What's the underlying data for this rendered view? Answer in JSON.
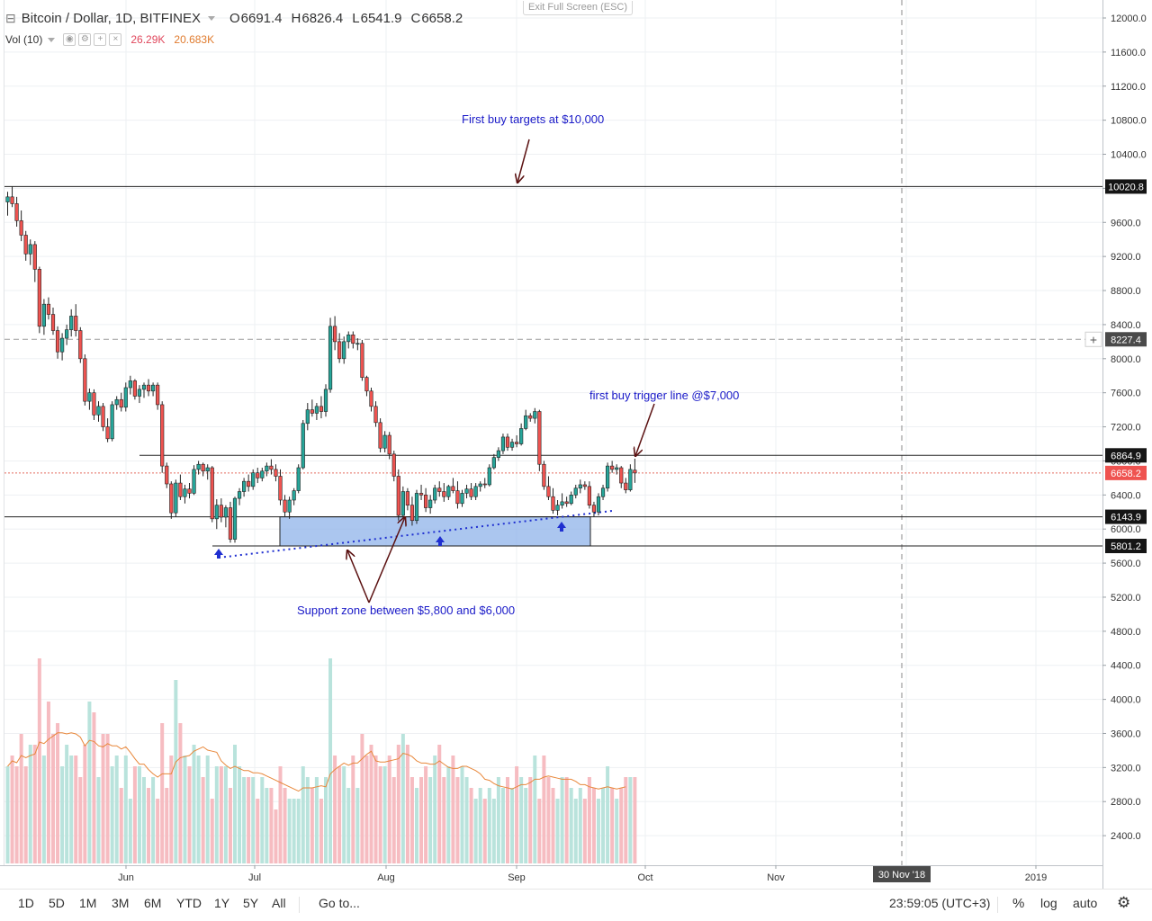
{
  "header": {
    "symbol_title": "Bitcoin / Dollar, 1D, BITFINEX",
    "ohlc": [
      {
        "label": "O",
        "value": "6691.4"
      },
      {
        "label": "H",
        "value": "6826.4"
      },
      {
        "label": "L",
        "value": "6541.9"
      },
      {
        "label": "C",
        "value": "6658.2"
      }
    ],
    "volume_label": "Vol (10)",
    "volume_value": "26.29K",
    "volume_ma_value": "20.683K",
    "exit_fullscreen": "Exit Full Screen (ESC)"
  },
  "colors": {
    "up": "#26a69a",
    "down": "#ef5350",
    "volume_up": "#b9e3dc",
    "volume_down": "#f6bcc1",
    "volume_ma": "#e8873a",
    "annotation_text": "#1a1ac8",
    "arrow": "#5b1111",
    "support_fill": "#8fb3ea"
  },
  "chart_data": {
    "type": "candlestick",
    "timeframe": "1D",
    "exchange": "BITFINEX",
    "x_tick_labels": [
      "Jun",
      "Jul",
      "Aug",
      "Sep",
      "Oct",
      "Nov",
      "30 Nov '18",
      "2019"
    ],
    "y_tick_labels": [
      "12000.0",
      "11600.0",
      "11200.0",
      "10800.0",
      "10400.0",
      "10000.0",
      "9600.0",
      "9200.0",
      "8800.0",
      "8400.0",
      "8000.0",
      "7600.0",
      "7200.0",
      "6800.0",
      "6400.0",
      "6000.0",
      "5600.0",
      "5200.0",
      "4800.0",
      "4400.0",
      "4000.0",
      "3600.0",
      "3200.0",
      "2800.0",
      "2400.0"
    ],
    "price_levels": [
      {
        "label": "10020.8",
        "value": 10020.8,
        "style": "solid"
      },
      {
        "label": "8227.4",
        "value": 8227.4,
        "style": "crosshair"
      },
      {
        "label": "6864.9",
        "value": 6864.9,
        "style": "solid"
      },
      {
        "label": "6658.2",
        "value": 6658.2,
        "style": "last-price"
      },
      {
        "label": "6143.9",
        "value": 6143.9,
        "style": "solid"
      },
      {
        "label": "5801.2",
        "value": 5801.2,
        "style": "solid"
      }
    ],
    "support_zone": {
      "low": 5801.2,
      "high": 6143.9
    },
    "annotations": [
      "First buy targets at $10,000",
      "first buy trigger line @$7,000",
      "Support zone between $5,800 and $6,000"
    ],
    "candles": [
      [
        9840,
        9960,
        9680,
        9900
      ],
      [
        9900,
        10020,
        9780,
        9820
      ],
      [
        9820,
        9900,
        9550,
        9620
      ],
      [
        9620,
        9740,
        9380,
        9450
      ],
      [
        9450,
        9500,
        9150,
        9230
      ],
      [
        9230,
        9400,
        9100,
        9340
      ],
      [
        9340,
        9380,
        8900,
        9050
      ],
      [
        9050,
        9080,
        8300,
        8380
      ],
      [
        8380,
        8700,
        8280,
        8640
      ],
      [
        8640,
        8720,
        8460,
        8520
      ],
      [
        8520,
        8600,
        8280,
        8330
      ],
      [
        8330,
        8380,
        8000,
        8080
      ],
      [
        8080,
        8300,
        7980,
        8240
      ],
      [
        8240,
        8400,
        8160,
        8340
      ],
      [
        8340,
        8580,
        8260,
        8500
      ],
      [
        8500,
        8640,
        8260,
        8330
      ],
      [
        8330,
        8370,
        7950,
        8000
      ],
      [
        8000,
        8050,
        7450,
        7500
      ],
      [
        7500,
        7650,
        7400,
        7600
      ],
      [
        7600,
        7640,
        7280,
        7340
      ],
      [
        7340,
        7500,
        7260,
        7440
      ],
      [
        7440,
        7480,
        7150,
        7200
      ],
      [
        7200,
        7300,
        7020,
        7060
      ],
      [
        7060,
        7500,
        7030,
        7460
      ],
      [
        7460,
        7560,
        7400,
        7520
      ],
      [
        7520,
        7600,
        7380,
        7430
      ],
      [
        7430,
        7720,
        7380,
        7660
      ],
      [
        7660,
        7800,
        7580,
        7740
      ],
      [
        7740,
        7760,
        7520,
        7560
      ],
      [
        7560,
        7690,
        7480,
        7640
      ],
      [
        7640,
        7720,
        7540,
        7690
      ],
      [
        7690,
        7760,
        7560,
        7620
      ],
      [
        7620,
        7720,
        7560,
        7690
      ],
      [
        7690,
        7720,
        7400,
        7460
      ],
      [
        7460,
        7500,
        6660,
        6740
      ],
      [
        6740,
        6780,
        6480,
        6530
      ],
      [
        6530,
        6560,
        6120,
        6190
      ],
      [
        6190,
        6580,
        6140,
        6540
      ],
      [
        6540,
        6640,
        6340,
        6380
      ],
      [
        6380,
        6520,
        6300,
        6470
      ],
      [
        6470,
        6540,
        6360,
        6420
      ],
      [
        6420,
        6750,
        6400,
        6700
      ],
      [
        6700,
        6800,
        6640,
        6760
      ],
      [
        6760,
        6780,
        6620,
        6680
      ],
      [
        6680,
        6760,
        6580,
        6720
      ],
      [
        6720,
        6740,
        6080,
        6120
      ],
      [
        6120,
        6350,
        6000,
        6280
      ],
      [
        6280,
        6360,
        6080,
        6140
      ],
      [
        6140,
        6280,
        6020,
        6250
      ],
      [
        6250,
        6320,
        5840,
        5880
      ],
      [
        5880,
        6380,
        5840,
        6360
      ],
      [
        6360,
        6480,
        6280,
        6440
      ],
      [
        6440,
        6600,
        6380,
        6560
      ],
      [
        6560,
        6640,
        6440,
        6500
      ],
      [
        6500,
        6700,
        6460,
        6660
      ],
      [
        6660,
        6720,
        6540,
        6600
      ],
      [
        6600,
        6720,
        6560,
        6680
      ],
      [
        6680,
        6780,
        6620,
        6740
      ],
      [
        6740,
        6820,
        6640,
        6700
      ],
      [
        6700,
        6760,
        6560,
        6620
      ],
      [
        6620,
        6700,
        6280,
        6340
      ],
      [
        6340,
        6400,
        6150,
        6200
      ],
      [
        6200,
        6380,
        6120,
        6340
      ],
      [
        6340,
        6480,
        6280,
        6450
      ],
      [
        6450,
        6760,
        6420,
        6720
      ],
      [
        6720,
        7280,
        6700,
        7240
      ],
      [
        7240,
        7480,
        7160,
        7400
      ],
      [
        7400,
        7520,
        7320,
        7360
      ],
      [
        7360,
        7480,
        7280,
        7440
      ],
      [
        7440,
        7560,
        7300,
        7380
      ],
      [
        7380,
        7700,
        7320,
        7640
      ],
      [
        7640,
        8480,
        7600,
        8380
      ],
      [
        8380,
        8500,
        8100,
        8200
      ],
      [
        8200,
        8300,
        7950,
        8000
      ],
      [
        8000,
        8260,
        7940,
        8200
      ],
      [
        8200,
        8320,
        8120,
        8280
      ],
      [
        8280,
        8320,
        8120,
        8180
      ],
      [
        8180,
        8240,
        8100,
        8180
      ],
      [
        8180,
        8220,
        7740,
        7780
      ],
      [
        7780,
        7800,
        7560,
        7620
      ],
      [
        7620,
        7660,
        7380,
        7440
      ],
      [
        7440,
        7500,
        7200,
        7250
      ],
      [
        7250,
        7300,
        6900,
        6950
      ],
      [
        6950,
        7150,
        6900,
        7100
      ],
      [
        7100,
        7140,
        6820,
        6880
      ],
      [
        6880,
        6920,
        6560,
        6620
      ],
      [
        6620,
        6700,
        6100,
        6160
      ],
      [
        6160,
        6500,
        6120,
        6440
      ],
      [
        6440,
        6480,
        6220,
        6280
      ],
      [
        6280,
        6380,
        6040,
        6100
      ],
      [
        6100,
        6460,
        6060,
        6420
      ],
      [
        6420,
        6520,
        6340,
        6400
      ],
      [
        6400,
        6480,
        6200,
        6250
      ],
      [
        6250,
        6400,
        6180,
        6340
      ],
      [
        6340,
        6520,
        6300,
        6480
      ],
      [
        6480,
        6560,
        6380,
        6440
      ],
      [
        6440,
        6540,
        6320,
        6380
      ],
      [
        6380,
        6520,
        6340,
        6500
      ],
      [
        6500,
        6600,
        6420,
        6450
      ],
      [
        6450,
        6560,
        6240,
        6300
      ],
      [
        6300,
        6460,
        6260,
        6420
      ],
      [
        6420,
        6520,
        6360,
        6470
      ],
      [
        6470,
        6540,
        6340,
        6380
      ],
      [
        6380,
        6540,
        6340,
        6500
      ],
      [
        6500,
        6560,
        6440,
        6530
      ],
      [
        6530,
        6600,
        6480,
        6520
      ],
      [
        6520,
        6760,
        6500,
        6720
      ],
      [
        6720,
        6880,
        6700,
        6840
      ],
      [
        6840,
        6960,
        6800,
        6920
      ],
      [
        6920,
        7120,
        6880,
        7080
      ],
      [
        7080,
        7120,
        6920,
        6960
      ],
      [
        6960,
        7060,
        6920,
        7020
      ],
      [
        7020,
        7100,
        6960,
        7000
      ],
      [
        7000,
        7240,
        6980,
        7180
      ],
      [
        7180,
        7400,
        7160,
        7330
      ],
      [
        7330,
        7360,
        7260,
        7300
      ],
      [
        7300,
        7420,
        7240,
        7380
      ],
      [
        7380,
        7400,
        6680,
        6760
      ],
      [
        6760,
        6800,
        6460,
        6500
      ],
      [
        6500,
        6620,
        6340,
        6380
      ],
      [
        6380,
        6480,
        6180,
        6220
      ],
      [
        6220,
        6340,
        6160,
        6280
      ],
      [
        6280,
        6420,
        6240,
        6320
      ],
      [
        6320,
        6380,
        6260,
        6300
      ],
      [
        6300,
        6440,
        6280,
        6400
      ],
      [
        6400,
        6520,
        6360,
        6480
      ],
      [
        6480,
        6580,
        6420,
        6520
      ],
      [
        6520,
        6560,
        6460,
        6500
      ],
      [
        6500,
        6560,
        6240,
        6280
      ],
      [
        6280,
        6320,
        6140,
        6200
      ],
      [
        6200,
        6420,
        6160,
        6380
      ],
      [
        6380,
        6520,
        6340,
        6480
      ],
      [
        6480,
        6780,
        6440,
        6740
      ],
      [
        6740,
        6800,
        6660,
        6700
      ],
      [
        6700,
        6760,
        6640,
        6720
      ],
      [
        6720,
        6740,
        6480,
        6540
      ],
      [
        6540,
        6600,
        6420,
        6460
      ],
      [
        6460,
        6760,
        6440,
        6700
      ],
      [
        6691.4,
        6826.4,
        6541.9,
        6658.2
      ]
    ],
    "volume_relative": [
      0.45,
      0.5,
      0.45,
      0.6,
      0.45,
      0.55,
      0.55,
      0.95,
      0.5,
      0.75,
      0.6,
      0.65,
      0.45,
      0.55,
      0.5,
      0.5,
      0.4,
      0.55,
      0.75,
      0.7,
      0.4,
      0.6,
      0.6,
      0.45,
      0.5,
      0.35,
      0.5,
      0.3,
      0.45,
      0.45,
      0.4,
      0.35,
      0.4,
      0.3,
      0.65,
      0.35,
      0.5,
      0.85,
      0.65,
      0.5,
      0.45,
      0.55,
      0.5,
      0.4,
      0.5,
      0.3,
      0.45,
      0.45,
      0.45,
      0.35,
      0.55,
      0.45,
      0.4,
      0.4,
      0.4,
      0.3,
      0.4,
      0.35,
      0.35,
      0.25,
      0.45,
      0.35,
      0.3,
      0.3,
      0.3,
      0.45,
      0.4,
      0.35,
      0.4,
      0.3,
      0.4,
      0.95,
      0.5,
      0.45,
      0.45,
      0.35,
      0.5,
      0.35,
      0.6,
      0.5,
      0.55,
      0.5,
      0.45,
      0.45,
      0.5,
      0.4,
      0.55,
      0.6,
      0.55,
      0.4,
      0.35,
      0.4,
      0.45,
      0.4,
      0.5,
      0.55,
      0.4,
      0.45,
      0.5,
      0.4,
      0.45,
      0.4,
      0.35,
      0.3,
      0.35,
      0.3,
      0.35,
      0.3,
      0.4,
      0.35,
      0.4,
      0.35,
      0.45,
      0.4,
      0.35,
      0.4,
      0.5,
      0.3,
      0.5,
      0.4,
      0.35,
      0.3,
      0.4,
      0.4,
      0.35,
      0.3,
      0.35,
      0.3,
      0.4,
      0.35,
      0.3,
      0.35,
      0.45,
      0.35,
      0.3,
      0.35,
      0.4
    ]
  },
  "toolbar": {
    "ranges": [
      "1D",
      "5D",
      "1M",
      "3M",
      "6M",
      "YTD",
      "1Y",
      "5Y",
      "All"
    ],
    "goto": "Go to...",
    "time": "23:59:05 (UTC+3)",
    "percent": "%",
    "log": "log",
    "auto": "auto"
  }
}
